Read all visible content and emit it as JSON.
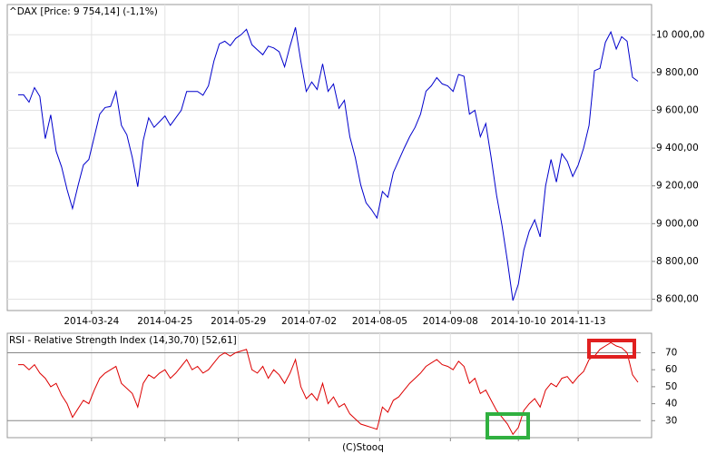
{
  "chart_data": [
    {
      "type": "line",
      "title": "^DAX [Price: 9 754,14] (-1,1%)",
      "color": "#0000cc",
      "grid": true,
      "x": [
        0,
        2,
        4,
        6,
        8,
        10,
        12,
        14,
        16,
        18,
        20,
        22,
        24,
        26,
        28,
        30,
        32,
        34,
        36,
        38,
        40,
        42,
        44,
        46,
        48,
        50,
        52,
        54,
        56,
        58,
        60,
        62,
        64,
        66,
        68,
        70,
        72,
        74,
        76,
        78,
        80,
        82,
        84,
        86,
        88,
        90,
        92,
        94,
        96,
        98,
        100,
        102,
        104,
        106,
        108,
        110,
        112,
        114,
        116,
        118,
        120,
        122,
        124,
        126,
        128,
        130,
        132,
        134,
        136,
        138,
        140,
        142,
        144,
        146,
        148,
        150,
        152,
        154,
        156,
        158,
        160,
        162,
        164,
        166,
        168,
        170,
        172,
        174,
        176,
        178,
        180,
        182,
        184,
        186,
        188,
        190,
        192,
        194,
        196,
        198,
        200,
        202,
        204,
        206,
        208,
        210,
        212,
        214,
        216,
        218,
        220,
        222,
        224,
        226,
        228
      ],
      "values": [
        9682,
        9682,
        9643,
        9720,
        9673,
        9450,
        9576,
        9383,
        9300,
        9181,
        9080,
        9200,
        9310,
        9340,
        9460,
        9580,
        9615,
        9620,
        9700,
        9520,
        9470,
        9350,
        9195,
        9440,
        9560,
        9510,
        9540,
        9570,
        9520,
        9560,
        9600,
        9700,
        9700,
        9700,
        9680,
        9730,
        9860,
        9952,
        9966,
        9942,
        9980,
        10000,
        10029,
        9947,
        9920,
        9894,
        9940,
        9930,
        9910,
        9830,
        9940,
        10039,
        9860,
        9700,
        9750,
        9710,
        9846,
        9700,
        9740,
        9610,
        9653,
        9460,
        9350,
        9205,
        9110,
        9074,
        9030,
        9170,
        9140,
        9270,
        9335,
        9400,
        9460,
        9510,
        9580,
        9701,
        9730,
        9773,
        9740,
        9730,
        9700,
        9790,
        9780,
        9580,
        9600,
        9460,
        9530,
        9350,
        9150,
        8990,
        8800,
        8593,
        8680,
        8860,
        8960,
        9020,
        8930,
        9200,
        9340,
        9220,
        9370,
        9330,
        9250,
        9310,
        9400,
        9520,
        9810,
        9822,
        9960,
        10015,
        9925,
        9990,
        9966,
        9775,
        9754
      ],
      "xlim": [
        -4,
        233
      ],
      "xticks": [
        {
          "value": 27,
          "label": "2014-03-24"
        },
        {
          "value": 54,
          "label": "2014-04-25"
        },
        {
          "value": 81,
          "label": "2014-05-29"
        },
        {
          "value": 107,
          "label": "2014-07-02"
        },
        {
          "value": 133,
          "label": "2014-08-05"
        },
        {
          "value": 159,
          "label": "2014-09-08"
        },
        {
          "value": 184,
          "label": "2014-10-10"
        },
        {
          "value": 206,
          "label": "2014-11-13"
        }
      ],
      "ylim": [
        8540,
        10160
      ],
      "yticks": [
        {
          "value": 8600,
          "label": "8 600,00"
        },
        {
          "value": 8800,
          "label": "8 800,00"
        },
        {
          "value": 9000,
          "label": "9 000,00"
        },
        {
          "value": 9200,
          "label": "9 200,00"
        },
        {
          "value": 9400,
          "label": "9 400,00"
        },
        {
          "value": 9600,
          "label": "9 600,00"
        },
        {
          "value": 9800,
          "label": "9 800,00"
        },
        {
          "value": 10000,
          "label": "10 000,00"
        }
      ]
    },
    {
      "type": "line",
      "title": "RSI - Relative Strength Index (14,30,70) [52,61]",
      "color": "#dd0000",
      "grid": false,
      "x": [
        0,
        2,
        4,
        6,
        8,
        10,
        12,
        14,
        16,
        18,
        20,
        22,
        24,
        26,
        28,
        30,
        32,
        34,
        36,
        38,
        40,
        42,
        44,
        46,
        48,
        50,
        52,
        54,
        56,
        58,
        60,
        62,
        64,
        66,
        68,
        70,
        72,
        74,
        76,
        78,
        80,
        82,
        84,
        86,
        88,
        90,
        92,
        94,
        96,
        98,
        100,
        102,
        104,
        106,
        108,
        110,
        112,
        114,
        116,
        118,
        120,
        122,
        124,
        126,
        128,
        130,
        132,
        134,
        136,
        138,
        140,
        142,
        144,
        146,
        148,
        150,
        152,
        154,
        156,
        158,
        160,
        162,
        164,
        166,
        168,
        170,
        172,
        174,
        176,
        178,
        180,
        182,
        184,
        186,
        188,
        190,
        192,
        194,
        196,
        198,
        200,
        202,
        204,
        206,
        208,
        210,
        212,
        214,
        216,
        218,
        220,
        222,
        224,
        226,
        228
      ],
      "values": [
        63,
        63,
        60,
        63,
        58,
        55,
        50,
        52,
        45,
        40,
        32,
        37,
        42,
        40,
        48,
        55,
        58,
        60,
        62,
        52,
        49,
        46,
        38,
        52,
        57,
        55,
        58,
        60,
        55,
        58,
        62,
        66,
        60,
        62,
        58,
        60,
        64,
        68,
        70,
        68,
        70,
        71,
        72,
        60,
        58,
        62,
        55,
        60,
        57,
        52,
        58,
        66,
        50,
        43,
        46,
        42,
        52,
        40,
        44,
        38,
        40,
        34,
        31,
        28,
        27,
        26,
        25,
        38,
        35,
        42,
        44,
        48,
        52,
        55,
        58,
        62,
        64,
        66,
        63,
        62,
        60,
        65,
        62,
        52,
        55,
        46,
        48,
        42,
        36,
        32,
        28,
        22,
        26,
        36,
        40,
        43,
        38,
        48,
        52,
        50,
        55,
        56,
        52,
        56,
        59,
        66,
        68,
        72,
        74,
        76,
        74,
        73,
        70,
        57,
        52.61
      ],
      "xlim": [
        -4,
        233
      ],
      "ylim": [
        20,
        81.5
      ],
      "yticks": [
        30,
        40,
        50,
        60,
        70
      ],
      "levels": [
        30,
        70
      ]
    }
  ],
  "footer": "(C)Stooq"
}
